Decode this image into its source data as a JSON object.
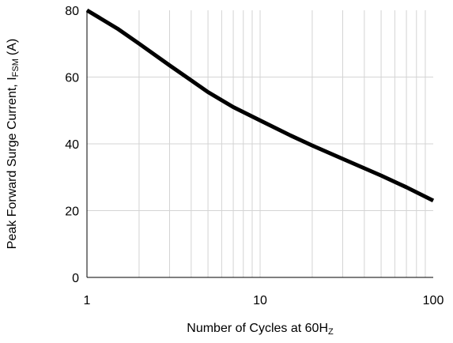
{
  "chart_data": {
    "type": "line",
    "ylabel": {
      "main": "Peak Forward Surge Current, I",
      "subscript": "FSM",
      "unit": "(A)"
    },
    "xlabel": {
      "main": "Number of Cycles at 60H",
      "subscript": "Z"
    },
    "x_scale": "log",
    "xlim": [
      1,
      100
    ],
    "ylim": [
      0,
      80
    ],
    "x_ticks": [
      1,
      10,
      100
    ],
    "x_tick_labels": [
      "1",
      "10",
      "100"
    ],
    "y_ticks": [
      0,
      20,
      40,
      60,
      80
    ],
    "y_tick_labels": [
      "0",
      "20",
      "40",
      "60",
      "80"
    ],
    "grid": true,
    "series": [
      {
        "line_color": "#000000",
        "points": [
          {
            "x": 1,
            "y": 80
          },
          {
            "x": 1.5,
            "y": 74.5
          },
          {
            "x": 2,
            "y": 70
          },
          {
            "x": 3,
            "y": 63.5
          },
          {
            "x": 4,
            "y": 59
          },
          {
            "x": 5,
            "y": 55.5
          },
          {
            "x": 7,
            "y": 51
          },
          {
            "x": 10,
            "y": 47
          },
          {
            "x": 15,
            "y": 42.5
          },
          {
            "x": 20,
            "y": 39.5
          },
          {
            "x": 30,
            "y": 35.5
          },
          {
            "x": 50,
            "y": 30.5
          },
          {
            "x": 70,
            "y": 27
          },
          {
            "x": 100,
            "y": 23
          }
        ]
      }
    ]
  }
}
